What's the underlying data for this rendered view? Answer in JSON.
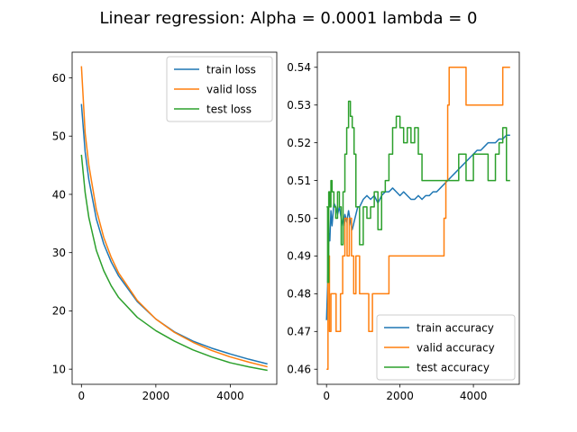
{
  "figure": {
    "suptitle": "Linear regression: Alpha = 0.0001 lambda =  0"
  },
  "chart_data": [
    {
      "type": "line",
      "title": "",
      "xlabel": "",
      "ylabel": "",
      "xlim": [
        -250,
        5250
      ],
      "ylim": [
        7.4,
        64.4
      ],
      "xticks": [
        0,
        2000,
        4000
      ],
      "xtick_labels": [
        "0",
        "2000",
        "4000"
      ],
      "yticks": [
        10,
        20,
        30,
        40,
        50,
        60
      ],
      "ytick_labels": [
        "10",
        "20",
        "30",
        "40",
        "50",
        "60"
      ],
      "grid": false,
      "legend": "top-right",
      "series": [
        {
          "name": "train loss",
          "color": "#1f77b4",
          "x": [
            0,
            100,
            200,
            400,
            600,
            800,
            1000,
            1500,
            2000,
            2500,
            3000,
            3500,
            4000,
            4500,
            5000
          ],
          "y": [
            55.5,
            47.3,
            42.5,
            35.8,
            31.5,
            28.4,
            26.0,
            21.6,
            18.6,
            16.4,
            14.8,
            13.6,
            12.6,
            11.7,
            10.9
          ]
        },
        {
          "name": "valid loss",
          "color": "#ff7f0e",
          "x": [
            0,
            100,
            200,
            400,
            600,
            800,
            1000,
            1500,
            2000,
            2500,
            3000,
            3500,
            4000,
            4500,
            5000
          ],
          "y": [
            62.0,
            50.5,
            45.0,
            37.4,
            32.6,
            29.2,
            26.5,
            21.8,
            18.6,
            16.3,
            14.6,
            13.2,
            12.1,
            11.2,
            10.4
          ]
        },
        {
          "name": "test loss",
          "color": "#2ca02c",
          "x": [
            0,
            100,
            200,
            400,
            600,
            800,
            1000,
            1500,
            2000,
            2500,
            3000,
            3500,
            4000,
            4500,
            5000
          ],
          "y": [
            46.8,
            40.3,
            36.0,
            30.4,
            26.9,
            24.3,
            22.3,
            18.9,
            16.6,
            14.8,
            13.3,
            12.1,
            11.1,
            10.4,
            9.8
          ]
        }
      ]
    },
    {
      "type": "line",
      "title": "",
      "xlabel": "",
      "ylabel": "",
      "xlim": [
        -250,
        5250
      ],
      "ylim": [
        0.456,
        0.544
      ],
      "xticks": [
        0,
        2000,
        4000
      ],
      "xtick_labels": [
        "0",
        "2000",
        "4000"
      ],
      "yticks": [
        0.46,
        0.47,
        0.48,
        0.49,
        0.5,
        0.51,
        0.52,
        0.53,
        0.54
      ],
      "ytick_labels": [
        "0.46",
        "0.47",
        "0.48",
        "0.49",
        "0.50",
        "0.51",
        "0.52",
        "0.53",
        "0.54"
      ],
      "grid": false,
      "legend": "bottom-right",
      "series": [
        {
          "name": "train accuracy",
          "color": "#1f77b4",
          "x": [
            0,
            30,
            60,
            90,
            120,
            150,
            200,
            250,
            300,
            350,
            400,
            450,
            500,
            550,
            600,
            650,
            700,
            750,
            800,
            850,
            900,
            1000,
            1100,
            1200,
            1300,
            1400,
            1500,
            1600,
            1700,
            1800,
            1900,
            2000,
            2100,
            2200,
            2300,
            2400,
            2500,
            2600,
            2700,
            2800,
            2900,
            3000,
            3100,
            3200,
            3300,
            3400,
            3500,
            3600,
            3700,
            3800,
            3900,
            4000,
            4100,
            4200,
            4300,
            4400,
            4500,
            4600,
            4700,
            4800,
            4900,
            5000
          ],
          "y": [
            0.473,
            0.482,
            0.496,
            0.494,
            0.502,
            0.498,
            0.504,
            0.503,
            0.501,
            0.503,
            0.5,
            0.498,
            0.501,
            0.499,
            0.502,
            0.499,
            0.497,
            0.499,
            0.501,
            0.503,
            0.503,
            0.505,
            0.506,
            0.505,
            0.506,
            0.504,
            0.506,
            0.507,
            0.507,
            0.508,
            0.507,
            0.506,
            0.507,
            0.506,
            0.505,
            0.505,
            0.506,
            0.505,
            0.506,
            0.506,
            0.507,
            0.507,
            0.508,
            0.509,
            0.51,
            0.511,
            0.512,
            0.513,
            0.514,
            0.515,
            0.516,
            0.517,
            0.518,
            0.518,
            0.519,
            0.52,
            0.52,
            0.52,
            0.521,
            0.521,
            0.522,
            0.522
          ]
        },
        {
          "name": "valid accuracy",
          "color": "#ff7f0e",
          "step": true,
          "x": [
            0,
            40,
            80,
            120,
            160,
            200,
            260,
            320,
            380,
            440,
            500,
            560,
            620,
            680,
            740,
            800,
            850,
            900,
            950,
            1000,
            1050,
            1100,
            1150,
            1200,
            1250,
            1650,
            1700,
            1800,
            2000,
            2200,
            2400,
            2600,
            2800,
            3000,
            3200,
            3250,
            3300,
            3340,
            3400,
            3600,
            3800,
            4000,
            4200,
            4400,
            4600,
            4800,
            4900,
            5000
          ],
          "y": [
            0.46,
            0.49,
            0.47,
            0.48,
            0.48,
            0.48,
            0.47,
            0.47,
            0.48,
            0.49,
            0.5,
            0.49,
            0.5,
            0.49,
            0.48,
            0.49,
            0.49,
            0.48,
            0.48,
            0.48,
            0.48,
            0.48,
            0.47,
            0.47,
            0.48,
            0.48,
            0.49,
            0.49,
            0.49,
            0.49,
            0.49,
            0.49,
            0.49,
            0.49,
            0.5,
            0.51,
            0.53,
            0.54,
            0.54,
            0.54,
            0.53,
            0.53,
            0.53,
            0.53,
            0.53,
            0.54,
            0.54,
            0.54
          ]
        },
        {
          "name": "test accuracy",
          "color": "#2ca02c",
          "step": true,
          "x": [
            0,
            30,
            60,
            90,
            120,
            150,
            200,
            250,
            300,
            350,
            400,
            450,
            500,
            550,
            600,
            650,
            700,
            750,
            800,
            900,
            1000,
            1100,
            1200,
            1300,
            1400,
            1500,
            1600,
            1700,
            1800,
            1900,
            2000,
            2100,
            2200,
            2300,
            2400,
            2500,
            2600,
            2800,
            3000,
            3200,
            3400,
            3600,
            3800,
            4000,
            4200,
            4400,
            4600,
            4700,
            4800,
            4900,
            5000
          ],
          "y": [
            0.503,
            0.483,
            0.507,
            0.503,
            0.51,
            0.507,
            0.503,
            0.5,
            0.507,
            0.503,
            0.493,
            0.507,
            0.517,
            0.524,
            0.531,
            0.527,
            0.524,
            0.517,
            0.503,
            0.493,
            0.503,
            0.5,
            0.503,
            0.507,
            0.497,
            0.507,
            0.51,
            0.517,
            0.524,
            0.527,
            0.524,
            0.52,
            0.524,
            0.52,
            0.524,
            0.517,
            0.51,
            0.51,
            0.51,
            0.51,
            0.51,
            0.517,
            0.51,
            0.517,
            0.517,
            0.51,
            0.517,
            0.52,
            0.524,
            0.51,
            0.51
          ]
        }
      ]
    }
  ]
}
